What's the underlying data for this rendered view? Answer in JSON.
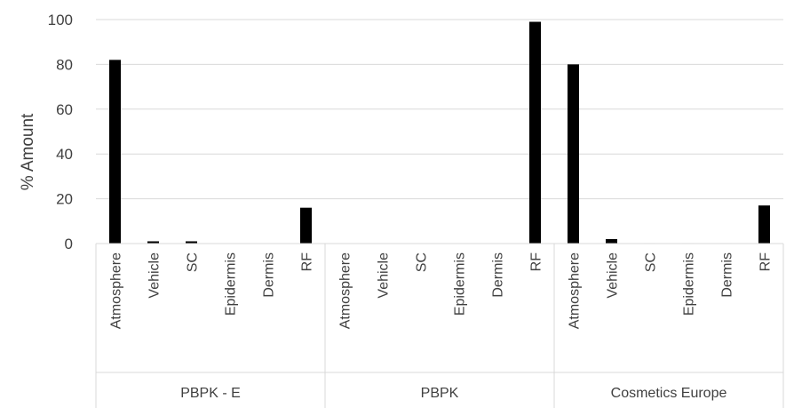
{
  "chart_data": {
    "type": "bar",
    "title": "",
    "xlabel": "",
    "ylabel": "% Amount",
    "ylim": [
      0,
      100
    ],
    "yticks": [
      0,
      20,
      40,
      60,
      80,
      100
    ],
    "grid": true,
    "legend": "none",
    "bar_color": "#000000",
    "groups": [
      {
        "name": "PBPK - E",
        "categories": [
          "Atmosphere",
          "Vehicle",
          "SC",
          "Epidermis",
          "Dermis",
          "RF"
        ],
        "values": [
          82,
          1,
          1,
          0,
          0,
          16
        ]
      },
      {
        "name": "PBPK",
        "categories": [
          "Atmosphere",
          "Vehicle",
          "SC",
          "Epidermis",
          "Dermis",
          "RF"
        ],
        "values": [
          0,
          0,
          0,
          0,
          0,
          99
        ]
      },
      {
        "name": "Cosmetics Europe",
        "categories": [
          "Atmosphere",
          "Vehicle",
          "SC",
          "Epidermis",
          "Dermis",
          "RF"
        ],
        "values": [
          80,
          2,
          0.2,
          0.2,
          0.2,
          17
        ]
      }
    ]
  }
}
